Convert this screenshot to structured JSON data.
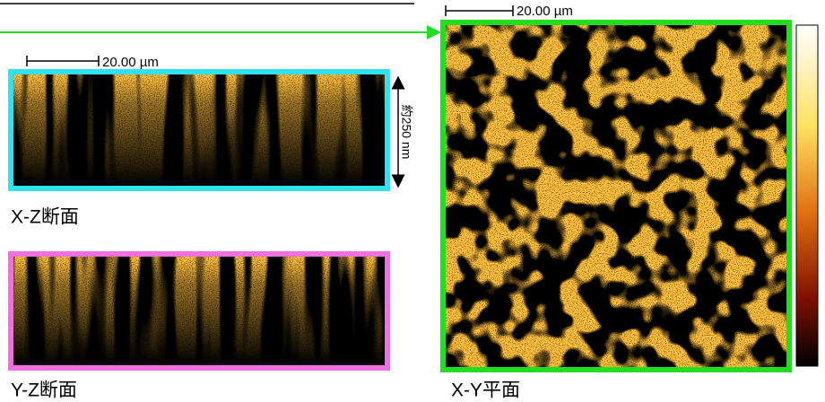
{
  "xz_panel": {
    "scale_bar": "20.00 µm",
    "depth_label": "約250 nm",
    "caption": "X-Z断面"
  },
  "yz_panel": {
    "caption": "Y-Z断面"
  },
  "xy_panel": {
    "scale_bar": "20.00 µm",
    "caption": "X-Y平面"
  }
}
